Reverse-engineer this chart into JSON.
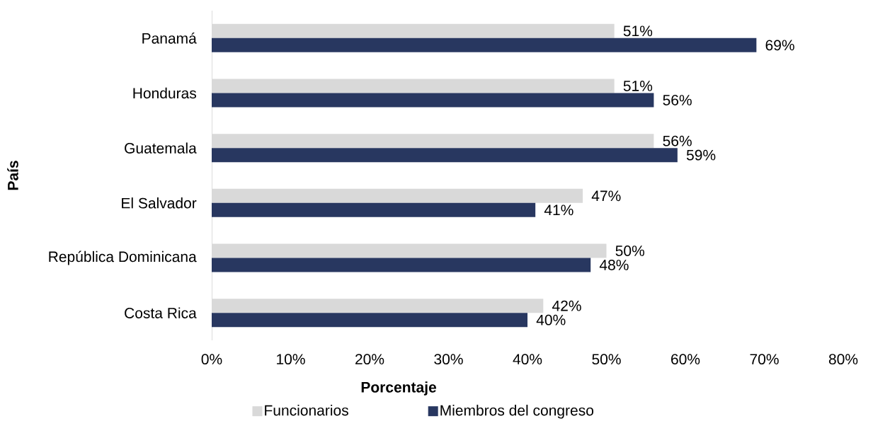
{
  "chart_data": {
    "type": "bar",
    "orientation": "horizontal",
    "xlabel": "Porcentaje",
    "ylabel": "País",
    "categories": [
      "Panamá",
      "Honduras",
      "Guatemala",
      "El Salvador",
      "República Dominicana",
      "Costa Rica"
    ],
    "series": [
      {
        "name": "Funcionarios",
        "color": "#d9d9d9",
        "values": [
          51,
          51,
          56,
          47,
          50,
          42
        ],
        "value_labels": [
          "51%",
          "51%",
          "56%",
          "47%",
          "50%",
          "42%"
        ]
      },
      {
        "name": "Miembros del congreso",
        "color": "#283760",
        "values": [
          69,
          56,
          59,
          41,
          48,
          40
        ],
        "value_labels": [
          "69%",
          "56%",
          "59%",
          "41%",
          "48%",
          "40%"
        ]
      }
    ],
    "xlim": [
      0,
      80
    ],
    "xticks": [
      {
        "value": 0,
        "label": "0%"
      },
      {
        "value": 10,
        "label": "10%"
      },
      {
        "value": 20,
        "label": "20%"
      },
      {
        "value": 30,
        "label": "30%"
      },
      {
        "value": 40,
        "label": "40%"
      },
      {
        "value": 50,
        "label": "50%"
      },
      {
        "value": 60,
        "label": "60%"
      },
      {
        "value": 70,
        "label": "70%"
      },
      {
        "value": 80,
        "label": "80%"
      }
    ],
    "legend": "bottom"
  }
}
